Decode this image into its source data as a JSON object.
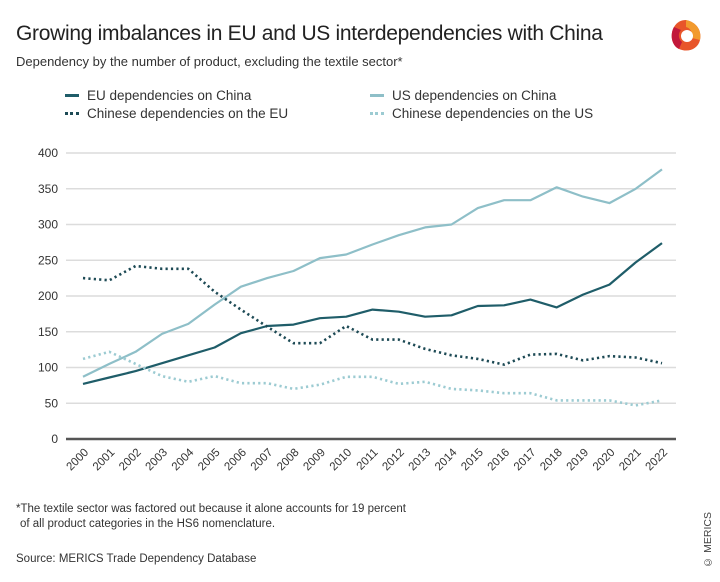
{
  "title": "Growing imbalances in EU and US interdependencies with China",
  "subtitle": "Dependency by the number of product, excluding the textile sector*",
  "footnote_line1": "*The textile sector was factored out because it alone accounts for 19 percent",
  "footnote_line2": "of all product categories in the HS6 nomenclature.",
  "source": "Source: MERICS Trade Dependency Database",
  "copyright": "© MERICS",
  "logo": "MERICS",
  "chart_data": {
    "type": "line",
    "title": "Growing imbalances in EU and US interdependencies with China",
    "subtitle": "Dependency by the number of product, excluding the textile sector*",
    "xlabel": "",
    "ylabel": "",
    "ylim": [
      0,
      400
    ],
    "yticks": [
      0,
      50,
      100,
      150,
      200,
      250,
      300,
      350,
      400
    ],
    "grid": true,
    "legend": "top",
    "x": [
      "2000",
      "2001",
      "2002",
      "2003",
      "2004",
      "2005",
      "2006",
      "2007",
      "2008",
      "2009",
      "2010",
      "2011",
      "2012",
      "2013",
      "2014",
      "2015",
      "2016",
      "2017",
      "2018",
      "2019",
      "2020",
      "2021",
      "2022"
    ],
    "series": [
      {
        "name": "EU dependencies on China",
        "color": "#1f5d69",
        "style": "solid",
        "values": [
          77,
          86,
          95,
          106,
          117,
          128,
          148,
          158,
          160,
          169,
          171,
          181,
          178,
          171,
          173,
          186,
          187,
          195,
          184,
          202,
          216,
          247,
          274
        ]
      },
      {
        "name": "US dependencies on China",
        "color": "#8ebfc8",
        "style": "solid",
        "values": [
          87,
          105,
          122,
          147,
          161,
          188,
          213,
          225,
          235,
          253,
          258,
          272,
          285,
          296,
          300,
          323,
          334,
          334,
          352,
          339,
          330,
          350,
          377
        ]
      },
      {
        "name": "Chinese dependencies on the EU",
        "color": "#1d4a55",
        "style": "dotted",
        "values": [
          225,
          222,
          242,
          238,
          238,
          206,
          181,
          157,
          134,
          134,
          158,
          139,
          139,
          126,
          117,
          112,
          104,
          118,
          119,
          110,
          116,
          114,
          106
        ]
      },
      {
        "name": "Chinese dependencies on the US",
        "color": "#9ccbd2",
        "style": "dotted",
        "values": [
          112,
          122,
          105,
          88,
          80,
          88,
          78,
          78,
          70,
          76,
          87,
          87,
          77,
          80,
          70,
          68,
          64,
          64,
          54,
          54,
          54,
          47,
          54
        ]
      }
    ]
  }
}
